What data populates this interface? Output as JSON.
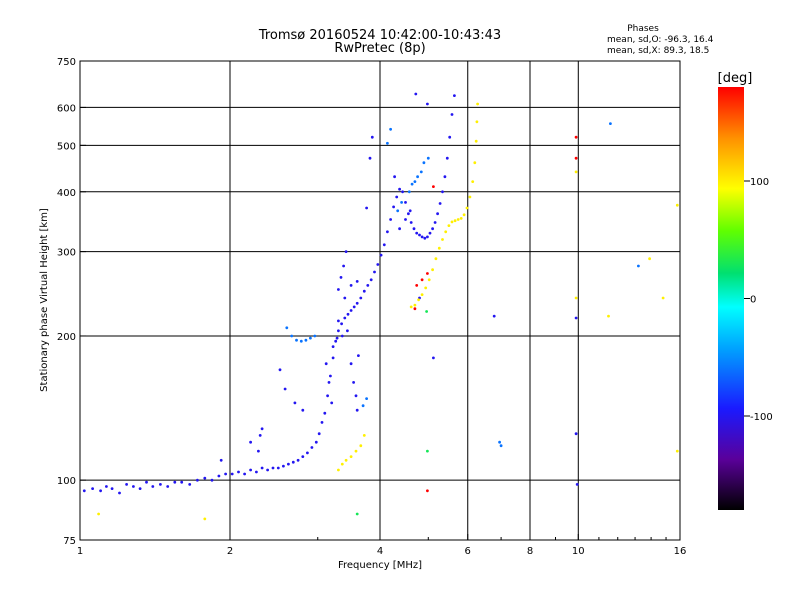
{
  "chart_data": {
    "type": "scatter",
    "title": "Tromsø 20160524 10:42:00-10:43:43",
    "subtitle": "RwPretec (8p)",
    "xlabel": "Frequency [MHz]",
    "ylabel": "Stationary phase Virtual Height [km]",
    "x_scale": "log",
    "y_scale": "log",
    "xlim": [
      1,
      16
    ],
    "ylim": [
      75,
      750
    ],
    "x_ticks": [
      1,
      2,
      4,
      6,
      8,
      10,
      16
    ],
    "y_ticks": [
      75,
      100,
      200,
      300,
      400,
      500,
      600,
      750
    ],
    "grid": true,
    "phase_box": {
      "title": "Phases",
      "line_o": "mean, sd,O: -96.3, 16.4",
      "line_x": "mean, sd,X:  89.3, 18.5"
    },
    "colorbar": {
      "label": "[deg]",
      "ticks": [
        100,
        0,
        -100
      ],
      "range": [
        -180,
        180
      ]
    },
    "series": [
      {
        "color_phase": -100,
        "points": [
          [
            1.02,
            95
          ],
          [
            1.06,
            96
          ],
          [
            1.1,
            95
          ],
          [
            1.13,
            97
          ],
          [
            1.16,
            96
          ],
          [
            1.2,
            94
          ],
          [
            1.24,
            98
          ],
          [
            1.28,
            97
          ],
          [
            1.32,
            96
          ],
          [
            1.36,
            99
          ],
          [
            1.4,
            97
          ],
          [
            1.45,
            98
          ],
          [
            1.5,
            97
          ],
          [
            1.55,
            99
          ],
          [
            1.6,
            99
          ],
          [
            1.66,
            98
          ],
          [
            1.72,
            100
          ],
          [
            1.78,
            101
          ],
          [
            1.84,
            100
          ],
          [
            1.9,
            102
          ],
          [
            1.96,
            103
          ],
          [
            2.02,
            103
          ],
          [
            2.08,
            104
          ],
          [
            2.14,
            103
          ],
          [
            2.2,
            105
          ],
          [
            2.26,
            104
          ],
          [
            2.32,
            106
          ],
          [
            2.38,
            105
          ],
          [
            2.44,
            106
          ],
          [
            2.5,
            106
          ],
          [
            2.56,
            107
          ],
          [
            2.62,
            108
          ],
          [
            2.68,
            109
          ],
          [
            2.74,
            110
          ],
          [
            2.8,
            112
          ],
          [
            2.86,
            114
          ],
          [
            2.92,
            117
          ],
          [
            2.98,
            120
          ],
          [
            3.02,
            125
          ],
          [
            3.06,
            132
          ],
          [
            3.1,
            138
          ],
          [
            3.14,
            150
          ],
          [
            3.18,
            165
          ],
          [
            3.22,
            180
          ],
          [
            3.26,
            195
          ],
          [
            3.3,
            205
          ],
          [
            3.35,
            212
          ],
          [
            3.4,
            218
          ],
          [
            3.45,
            222
          ],
          [
            3.5,
            226
          ],
          [
            3.55,
            230
          ],
          [
            3.6,
            234
          ],
          [
            3.66,
            240
          ],
          [
            3.72,
            248
          ],
          [
            3.78,
            255
          ],
          [
            3.84,
            262
          ],
          [
            3.9,
            272
          ],
          [
            3.96,
            282
          ],
          [
            4.02,
            295
          ],
          [
            4.08,
            310
          ],
          [
            4.14,
            330
          ],
          [
            4.2,
            350
          ],
          [
            4.26,
            372
          ],
          [
            4.32,
            390
          ],
          [
            4.38,
            405
          ],
          [
            4.44,
            400
          ],
          [
            4.5,
            380
          ],
          [
            4.56,
            360
          ],
          [
            4.62,
            345
          ],
          [
            4.68,
            335
          ],
          [
            4.74,
            328
          ],
          [
            4.8,
            325
          ],
          [
            4.86,
            322
          ],
          [
            4.92,
            320
          ],
          [
            4.98,
            322
          ],
          [
            5.04,
            328
          ],
          [
            5.1,
            335
          ],
          [
            5.16,
            345
          ],
          [
            5.22,
            360
          ],
          [
            5.28,
            378
          ],
          [
            5.34,
            400
          ],
          [
            5.4,
            430
          ],
          [
            5.46,
            470
          ],
          [
            5.52,
            520
          ],
          [
            5.58,
            580
          ],
          [
            5.64,
            635
          ],
          [
            2.28,
            115
          ],
          [
            2.2,
            120
          ],
          [
            1.92,
            110
          ],
          [
            2.32,
            128
          ],
          [
            2.3,
            124
          ],
          [
            3.3,
            250
          ],
          [
            3.34,
            265
          ],
          [
            3.38,
            280
          ],
          [
            3.42,
            300
          ],
          [
            3.5,
            175
          ],
          [
            3.54,
            160
          ],
          [
            3.58,
            150
          ],
          [
            3.62,
            182
          ],
          [
            3.76,
            370
          ],
          [
            3.82,
            470
          ],
          [
            3.86,
            520
          ],
          [
            4.72,
            640
          ],
          [
            4.98,
            610
          ],
          [
            4.38,
            335
          ],
          [
            4.5,
            350
          ],
          [
            4.6,
            365
          ],
          [
            4.28,
            430
          ],
          [
            4.8,
            240
          ],
          [
            5.12,
            180
          ],
          [
            3.22,
            190
          ],
          [
            3.28,
            198
          ],
          [
            3.36,
            200
          ],
          [
            3.44,
            205
          ],
          [
            3.12,
            175
          ],
          [
            3.16,
            160
          ],
          [
            3.2,
            145
          ],
          [
            3.6,
            140
          ],
          [
            3.3,
            215
          ],
          [
            3.4,
            240
          ],
          [
            3.5,
            255
          ],
          [
            3.6,
            260
          ],
          [
            6.78,
            220
          ],
          [
            2.58,
            155
          ],
          [
            2.52,
            170
          ],
          [
            2.7,
            145
          ],
          [
            2.8,
            140
          ],
          [
            9.9,
            218
          ],
          [
            9.95,
            98
          ],
          [
            9.9,
            125
          ]
        ]
      },
      {
        "color_phase": -60,
        "points": [
          [
            2.6,
            208
          ],
          [
            2.66,
            200
          ],
          [
            2.72,
            196
          ],
          [
            2.78,
            195
          ],
          [
            2.84,
            196
          ],
          [
            2.9,
            198
          ],
          [
            2.96,
            200
          ],
          [
            3.7,
            143
          ],
          [
            3.76,
            148
          ],
          [
            4.14,
            505
          ],
          [
            4.2,
            540
          ],
          [
            4.34,
            365
          ],
          [
            4.42,
            380
          ],
          [
            4.58,
            400
          ],
          [
            4.7,
            420
          ],
          [
            4.76,
            430
          ],
          [
            4.64,
            415
          ],
          [
            4.84,
            440
          ],
          [
            4.9,
            460
          ],
          [
            5.0,
            470
          ],
          [
            7.0,
            118
          ],
          [
            6.95,
            120
          ],
          [
            11.6,
            555
          ],
          [
            13.2,
            280
          ]
        ]
      },
      {
        "color_phase": 100,
        "points": [
          [
            4.62,
            230
          ],
          [
            4.7,
            232
          ],
          [
            4.78,
            238
          ],
          [
            4.86,
            244
          ],
          [
            4.94,
            252
          ],
          [
            5.02,
            262
          ],
          [
            5.1,
            275
          ],
          [
            5.18,
            290
          ],
          [
            5.26,
            305
          ],
          [
            5.34,
            318
          ],
          [
            5.42,
            330
          ],
          [
            5.5,
            340
          ],
          [
            5.58,
            346
          ],
          [
            5.66,
            348
          ],
          [
            5.74,
            350
          ],
          [
            5.82,
            352
          ],
          [
            5.9,
            358
          ],
          [
            5.98,
            370
          ],
          [
            6.06,
            390
          ],
          [
            6.14,
            420
          ],
          [
            6.2,
            460
          ],
          [
            6.24,
            510
          ],
          [
            6.26,
            560
          ],
          [
            6.28,
            610
          ],
          [
            3.42,
            110
          ],
          [
            3.5,
            112
          ],
          [
            3.58,
            115
          ],
          [
            3.66,
            118
          ],
          [
            3.72,
            124
          ],
          [
            3.36,
            108
          ],
          [
            3.3,
            105
          ],
          [
            1.09,
            85
          ],
          [
            1.78,
            83
          ],
          [
            9.9,
            440
          ],
          [
            9.9,
            240
          ],
          [
            11.5,
            220
          ],
          [
            13.9,
            290
          ],
          [
            14.8,
            240
          ],
          [
            15.8,
            115
          ],
          [
            15.8,
            375
          ]
        ]
      },
      {
        "color_phase": 180,
        "points": [
          [
            4.74,
            255
          ],
          [
            4.86,
            262
          ],
          [
            4.98,
            270
          ],
          [
            5.12,
            410
          ],
          [
            4.7,
            228
          ],
          [
            4.98,
            95
          ],
          [
            9.9,
            520
          ],
          [
            9.9,
            470
          ]
        ]
      },
      {
        "color_phase": 30,
        "points": [
          [
            3.6,
            85
          ],
          [
            4.96,
            225
          ],
          [
            4.98,
            115
          ]
        ]
      }
    ]
  }
}
